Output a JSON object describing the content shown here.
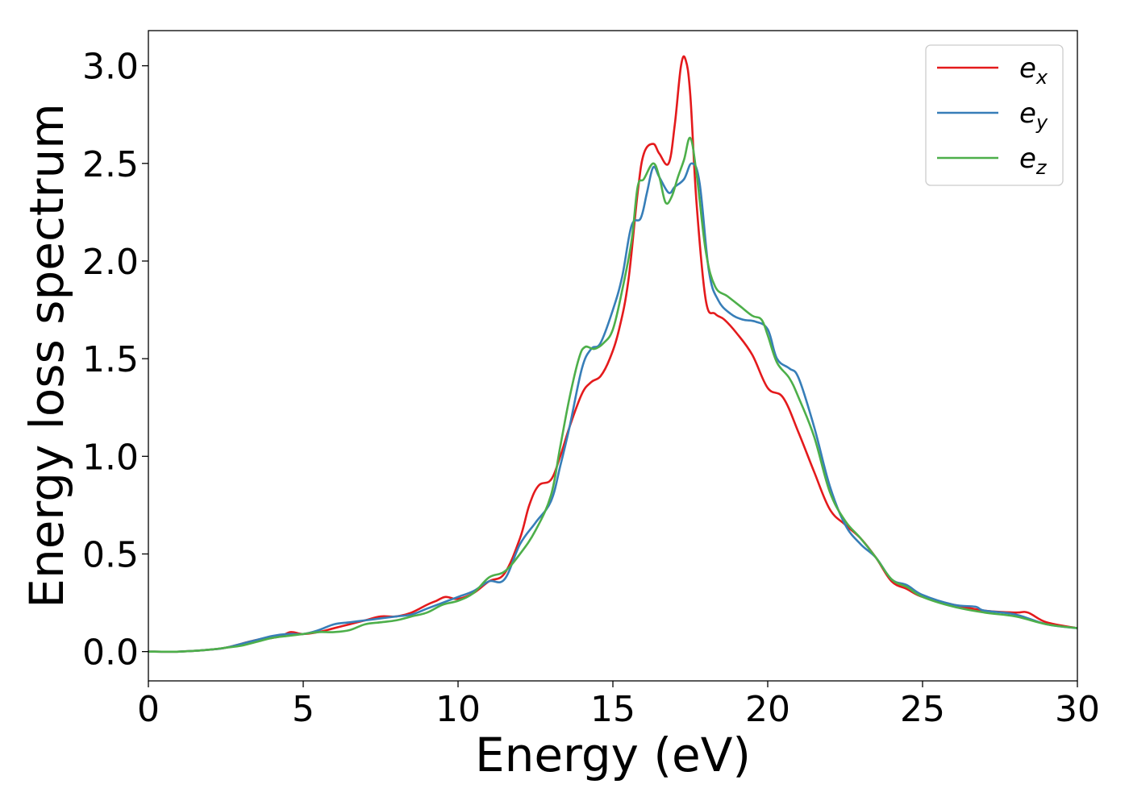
{
  "chart_data": {
    "type": "line",
    "title": "",
    "xlabel": "Energy (eV)",
    "ylabel": "Energy loss spectrum",
    "xlim": [
      0,
      30
    ],
    "ylim": [
      -0.15,
      3.18
    ],
    "grid": false,
    "legend_position": "top-right",
    "x_ticks": [
      0,
      5,
      10,
      15,
      20,
      25,
      30
    ],
    "x_tick_labels": [
      "0",
      "5",
      "10",
      "15",
      "20",
      "25",
      "30"
    ],
    "y_ticks": [
      0.0,
      0.5,
      1.0,
      1.5,
      2.0,
      2.5,
      3.0
    ],
    "y_tick_labels": [
      "0.0",
      "0.5",
      "1.0",
      "1.5",
      "2.0",
      "2.5",
      "3.0"
    ],
    "series": [
      {
        "name": "e_x",
        "label_base": "e",
        "label_sub": "x",
        "color": "#e41a1c",
        "x": [
          0,
          1,
          2,
          2.5,
          3,
          3.5,
          4,
          4.3,
          4.6,
          5,
          5.5,
          6,
          6.5,
          7,
          7.5,
          8,
          8.5,
          9,
          9.3,
          9.6,
          10,
          10.5,
          11,
          11.5,
          12,
          12.3,
          12.6,
          13,
          13.3,
          13.6,
          14,
          14.3,
          14.6,
          14.9,
          15.2,
          15.5,
          15.8,
          16.0,
          16.3,
          16.5,
          16.8,
          17.0,
          17.2,
          17.35,
          17.5,
          17.7,
          18.0,
          18.3,
          18.6,
          19.0,
          19.5,
          20.0,
          20.5,
          21.0,
          21.5,
          22.0,
          22.5,
          23.0,
          23.5,
          24.0,
          24.5,
          25.0,
          26.0,
          27.0,
          28.0,
          28.4,
          29.0,
          30.0
        ],
        "y": [
          0.0,
          0.0,
          0.01,
          0.02,
          0.04,
          0.06,
          0.07,
          0.08,
          0.1,
          0.09,
          0.1,
          0.12,
          0.14,
          0.16,
          0.18,
          0.18,
          0.2,
          0.24,
          0.26,
          0.28,
          0.27,
          0.3,
          0.36,
          0.4,
          0.58,
          0.75,
          0.85,
          0.88,
          1.0,
          1.15,
          1.32,
          1.38,
          1.41,
          1.5,
          1.65,
          1.9,
          2.35,
          2.55,
          2.6,
          2.55,
          2.5,
          2.7,
          3.0,
          3.03,
          2.85,
          2.3,
          1.8,
          1.73,
          1.7,
          1.63,
          1.52,
          1.35,
          1.3,
          1.12,
          0.92,
          0.73,
          0.65,
          0.58,
          0.48,
          0.36,
          0.32,
          0.28,
          0.24,
          0.21,
          0.2,
          0.2,
          0.15,
          0.12
        ]
      },
      {
        "name": "e_y",
        "label_base": "e",
        "label_sub": "y",
        "color": "#377eb8",
        "x": [
          0,
          1,
          2,
          2.5,
          3,
          3.5,
          4,
          4.5,
          5,
          5.5,
          6,
          6.5,
          7,
          7.5,
          8,
          8.5,
          9,
          9.5,
          10,
          10.5,
          11,
          11.5,
          12,
          12.5,
          13,
          13.3,
          13.6,
          14,
          14.3,
          14.6,
          15.0,
          15.3,
          15.6,
          15.9,
          16.1,
          16.3,
          16.5,
          16.8,
          17.0,
          17.3,
          17.55,
          17.8,
          18.1,
          18.4,
          18.8,
          19.2,
          19.6,
          20.0,
          20.3,
          20.7,
          21.0,
          21.5,
          22.0,
          22.5,
          23.0,
          23.5,
          24.0,
          24.5,
          25.0,
          26.0,
          26.7,
          27.0,
          28.0,
          29.0,
          30.0
        ],
        "y": [
          0.0,
          0.0,
          0.01,
          0.02,
          0.04,
          0.06,
          0.08,
          0.09,
          0.09,
          0.11,
          0.14,
          0.15,
          0.16,
          0.17,
          0.18,
          0.19,
          0.22,
          0.25,
          0.28,
          0.31,
          0.36,
          0.37,
          0.55,
          0.66,
          0.77,
          0.95,
          1.15,
          1.45,
          1.55,
          1.58,
          1.75,
          1.92,
          2.18,
          2.22,
          2.35,
          2.48,
          2.43,
          2.35,
          2.38,
          2.42,
          2.5,
          2.4,
          1.95,
          1.8,
          1.73,
          1.7,
          1.69,
          1.65,
          1.5,
          1.45,
          1.4,
          1.15,
          0.85,
          0.65,
          0.55,
          0.48,
          0.37,
          0.34,
          0.29,
          0.24,
          0.23,
          0.21,
          0.19,
          0.14,
          0.12
        ]
      },
      {
        "name": "e_z",
        "label_base": "e",
        "label_sub": "z",
        "color": "#4daf4a",
        "x": [
          0,
          1,
          2,
          2.5,
          3,
          3.5,
          4,
          4.5,
          5,
          5.5,
          6,
          6.5,
          7,
          7.5,
          8,
          8.5,
          9,
          9.5,
          10,
          10.5,
          11,
          11.5,
          12,
          12.5,
          13,
          13.3,
          13.6,
          13.9,
          14.1,
          14.4,
          14.7,
          15.0,
          15.3,
          15.6,
          15.8,
          16.0,
          16.3,
          16.5,
          16.7,
          16.9,
          17.1,
          17.3,
          17.5,
          17.7,
          18.0,
          18.3,
          18.7,
          19.1,
          19.5,
          19.8,
          20.0,
          20.3,
          20.7,
          21.0,
          21.5,
          22.0,
          22.5,
          23.0,
          23.5,
          24.0,
          24.5,
          25.0,
          26.0,
          27.0,
          28.0,
          29.0,
          30.0
        ],
        "y": [
          0.0,
          0.0,
          0.01,
          0.02,
          0.03,
          0.05,
          0.07,
          0.08,
          0.09,
          0.1,
          0.1,
          0.11,
          0.14,
          0.15,
          0.16,
          0.18,
          0.2,
          0.24,
          0.26,
          0.3,
          0.38,
          0.41,
          0.5,
          0.62,
          0.8,
          1.05,
          1.3,
          1.5,
          1.56,
          1.55,
          1.58,
          1.65,
          1.85,
          2.1,
          2.38,
          2.42,
          2.5,
          2.43,
          2.3,
          2.33,
          2.43,
          2.52,
          2.63,
          2.45,
          2.05,
          1.87,
          1.82,
          1.77,
          1.72,
          1.7,
          1.62,
          1.48,
          1.4,
          1.3,
          1.1,
          0.82,
          0.67,
          0.58,
          0.48,
          0.37,
          0.33,
          0.28,
          0.23,
          0.2,
          0.18,
          0.14,
          0.12
        ]
      }
    ]
  }
}
